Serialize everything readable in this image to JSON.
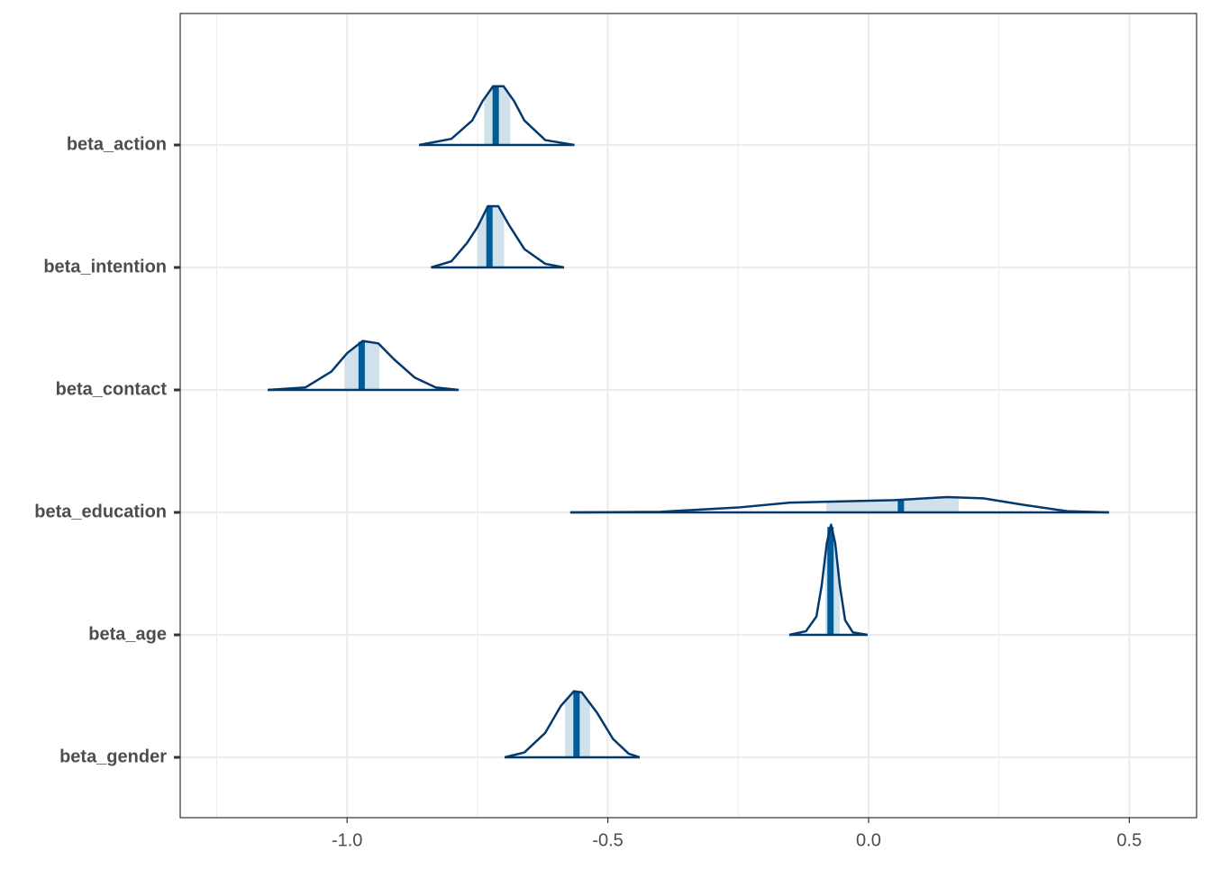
{
  "chart_data": {
    "type": "areas",
    "xlim": [
      -1.32,
      0.629
    ],
    "xticks": [
      {
        "value": -1.0,
        "label": "-1.0"
      },
      {
        "value": -0.5,
        "label": "-0.5"
      },
      {
        "value": 0.0,
        "label": "0.0"
      },
      {
        "value": 0.5,
        "label": "0.5"
      }
    ],
    "minor_grid": [
      -1.25,
      -0.75,
      -0.25,
      0.25
    ],
    "grid": true,
    "colors": {
      "outline": "#03396c",
      "interval": "#d1e1ec",
      "median": "#005b96"
    },
    "params": [
      {
        "name": "beta_action",
        "median": -0.715,
        "inner": [
          -0.737,
          -0.687
        ],
        "x": [
          -0.862,
          -0.8,
          -0.76,
          -0.74,
          -0.72,
          -0.7,
          -0.68,
          -0.66,
          -0.62,
          -0.564
        ],
        "density": [
          0,
          0.05,
          0.2,
          0.36,
          0.48,
          0.48,
          0.36,
          0.2,
          0.04,
          0
        ]
      },
      {
        "name": "beta_intention",
        "median": -0.727,
        "inner": [
          -0.75,
          -0.699
        ],
        "x": [
          -0.839,
          -0.8,
          -0.77,
          -0.75,
          -0.73,
          -0.71,
          -0.69,
          -0.66,
          -0.62,
          -0.584
        ],
        "density": [
          0,
          0.05,
          0.2,
          0.33,
          0.5,
          0.5,
          0.35,
          0.15,
          0.03,
          0
        ]
      },
      {
        "name": "beta_contact",
        "median": -0.972,
        "inner": [
          -1.005,
          -0.938
        ],
        "x": [
          -1.152,
          -1.08,
          -1.03,
          -1.0,
          -0.97,
          -0.94,
          -0.91,
          -0.87,
          -0.83,
          -0.786
        ],
        "density": [
          0,
          0.02,
          0.15,
          0.3,
          0.4,
          0.38,
          0.25,
          0.1,
          0.02,
          0
        ]
      },
      {
        "name": "beta_education",
        "median": 0.062,
        "inner": [
          -0.081,
          0.173
        ],
        "x": [
          -0.572,
          -0.4,
          -0.25,
          -0.15,
          -0.05,
          0.05,
          0.15,
          0.22,
          0.3,
          0.38,
          0.461
        ],
        "density": [
          0,
          0.005,
          0.04,
          0.08,
          0.09,
          0.1,
          0.125,
          0.115,
          0.06,
          0.01,
          0
        ]
      },
      {
        "name": "beta_age",
        "median": -0.073,
        "inner": [
          -0.083,
          -0.055
        ],
        "x": [
          -0.152,
          -0.12,
          -0.1,
          -0.09,
          -0.08,
          -0.072,
          -0.064,
          -0.055,
          -0.045,
          -0.03,
          -0.002
        ],
        "density": [
          0,
          0.03,
          0.15,
          0.4,
          0.75,
          0.9,
          0.75,
          0.4,
          0.12,
          0.02,
          0
        ]
      },
      {
        "name": "beta_gender",
        "median": -0.56,
        "inner": [
          -0.582,
          -0.534
        ],
        "x": [
          -0.698,
          -0.66,
          -0.62,
          -0.59,
          -0.565,
          -0.55,
          -0.52,
          -0.49,
          -0.46,
          -0.439
        ],
        "density": [
          0,
          0.04,
          0.2,
          0.42,
          0.54,
          0.53,
          0.36,
          0.15,
          0.03,
          0
        ]
      }
    ]
  }
}
